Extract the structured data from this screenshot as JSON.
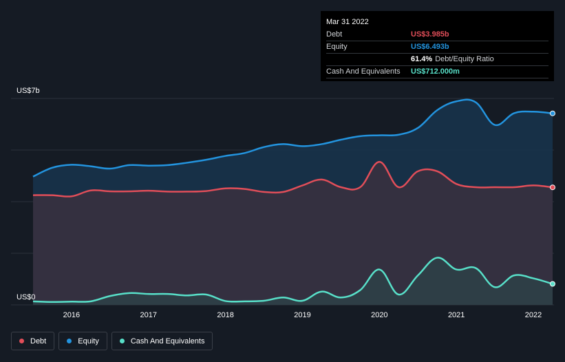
{
  "tooltip": {
    "date": "Mar 31 2022",
    "rows": [
      {
        "name": "Debt",
        "value": "US$3.985b",
        "color": "#e24e59"
      },
      {
        "name": "Equity",
        "value": "US$6.493b",
        "color": "#2394df"
      },
      {
        "name": "",
        "value": "61.4%",
        "color": "#ffffff",
        "extra": "Debt/Equity Ratio"
      },
      {
        "name": "Cash And Equivalents",
        "value": "US$712.000m",
        "color": "#58e0c9"
      }
    ]
  },
  "legend": [
    {
      "label": "Debt",
      "color": "#e24e59"
    },
    {
      "label": "Equity",
      "color": "#2394df"
    },
    {
      "label": "Cash And Equivalents",
      "color": "#58e0c9"
    }
  ],
  "chart_data": {
    "type": "area",
    "y_top_label": "US$7b",
    "y_bottom_label": "US$0",
    "ylim": [
      0,
      7
    ],
    "xlim": [
      2015.5,
      2022.25
    ],
    "x_ticks": [
      2016,
      2017,
      2018,
      2019,
      2020,
      2021,
      2022
    ],
    "x_tick_labels": [
      "2016",
      "2017",
      "2018",
      "2019",
      "2020",
      "2021",
      "2022"
    ],
    "series": [
      {
        "name": "Equity",
        "color": "#2394df",
        "x": [
          2015.5,
          2015.75,
          2016.0,
          2016.25,
          2016.5,
          2016.75,
          2017.0,
          2017.25,
          2017.5,
          2017.75,
          2018.0,
          2018.25,
          2018.5,
          2018.75,
          2019.0,
          2019.25,
          2019.5,
          2019.75,
          2020.0,
          2020.25,
          2020.5,
          2020.75,
          2021.0,
          2021.25,
          2021.5,
          2021.75,
          2022.0,
          2022.25
        ],
        "y": [
          4.35,
          4.65,
          4.75,
          4.7,
          4.62,
          4.74,
          4.72,
          4.74,
          4.82,
          4.92,
          5.05,
          5.15,
          5.35,
          5.45,
          5.38,
          5.45,
          5.6,
          5.72,
          5.75,
          5.77,
          6.0,
          6.6,
          6.9,
          6.87,
          6.1,
          6.5,
          6.55,
          6.493
        ]
      },
      {
        "name": "Debt",
        "color": "#e24e59",
        "x": [
          2015.5,
          2015.75,
          2016.0,
          2016.25,
          2016.5,
          2016.75,
          2017.0,
          2017.25,
          2017.5,
          2017.75,
          2018.0,
          2018.25,
          2018.5,
          2018.75,
          2019.0,
          2019.25,
          2019.5,
          2019.75,
          2020.0,
          2020.25,
          2020.5,
          2020.75,
          2021.0,
          2021.25,
          2021.5,
          2021.75,
          2022.0,
          2022.25
        ],
        "y": [
          3.72,
          3.72,
          3.68,
          3.88,
          3.85,
          3.85,
          3.87,
          3.84,
          3.84,
          3.86,
          3.95,
          3.93,
          3.83,
          3.83,
          4.05,
          4.25,
          3.99,
          3.99,
          4.85,
          3.99,
          4.53,
          4.53,
          4.1,
          3.99,
          3.99,
          3.99,
          4.05,
          3.985
        ]
      },
      {
        "name": "Cash And Equivalents",
        "color": "#58e0c9",
        "x": [
          2015.5,
          2015.75,
          2016.0,
          2016.25,
          2016.5,
          2016.75,
          2017.0,
          2017.25,
          2017.5,
          2017.75,
          2018.0,
          2018.25,
          2018.5,
          2018.75,
          2019.0,
          2019.25,
          2019.5,
          2019.75,
          2020.0,
          2020.25,
          2020.5,
          2020.75,
          2021.0,
          2021.25,
          2021.5,
          2021.75,
          2022.0,
          2022.25
        ],
        "y": [
          0.12,
          0.1,
          0.11,
          0.12,
          0.3,
          0.4,
          0.37,
          0.37,
          0.32,
          0.35,
          0.13,
          0.12,
          0.14,
          0.25,
          0.14,
          0.45,
          0.25,
          0.5,
          1.2,
          0.35,
          1.0,
          1.6,
          1.2,
          1.25,
          0.6,
          1.0,
          0.9,
          0.712
        ]
      }
    ]
  }
}
